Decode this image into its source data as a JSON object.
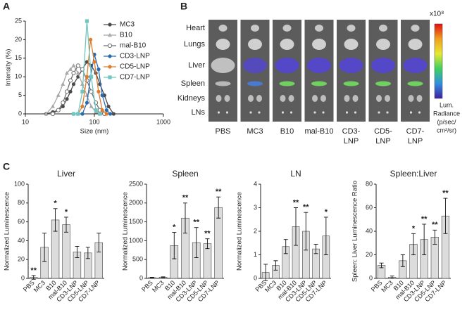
{
  "panel_labels": [
    "A",
    "B",
    "C"
  ],
  "imaging": {
    "rows": [
      "Heart",
      "Lungs",
      "Liver",
      "Spleen",
      "Kidneys",
      "LNs"
    ],
    "columns": [
      [
        "PBS"
      ],
      [
        "MC3"
      ],
      [
        "B10"
      ],
      [
        "mal-B10"
      ],
      [
        "CD3-",
        "LNP"
      ],
      [
        "CD5-",
        "LNP"
      ],
      [
        "CD7-",
        "LNP"
      ]
    ],
    "colorbar_exponent": "x10⁸",
    "colorbar_label": [
      "Lum.",
      "Radiance",
      "(p/sec/",
      "cm²/sr)"
    ]
  },
  "chart_data": [
    {
      "type": "line",
      "xlabel": "Size (nm)",
      "ylabel": "Intensity (%)",
      "log_x": true,
      "xlim": [
        10,
        1000
      ],
      "xticks": [
        10,
        100,
        1000
      ],
      "ylim": [
        0,
        25
      ],
      "yticks": [
        0,
        5,
        10,
        15,
        20,
        25
      ],
      "legend": "upper right",
      "series": [
        {
          "name": "MC3",
          "color": "#4a4a4a",
          "marker": "circle",
          "x": [
            20,
            25,
            30,
            35,
            40,
            45,
            50,
            58,
            67,
            78,
            90,
            105,
            120,
            140,
            160,
            190
          ],
          "values": [
            0,
            0.5,
            1,
            2,
            4,
            6,
            8,
            10,
            12,
            14,
            13,
            11,
            8,
            5,
            2,
            0
          ]
        },
        {
          "name": "B10",
          "color": "#a8a8a8",
          "marker": "triangle",
          "x": [
            20,
            25,
            30,
            35,
            40,
            45,
            50,
            58,
            67,
            78,
            90,
            105,
            120
          ],
          "values": [
            0,
            2,
            5,
            8,
            11,
            12,
            13,
            11,
            8,
            5,
            2,
            0.5,
            0
          ]
        },
        {
          "name": "mal-B10",
          "color": "#6e6e6e",
          "marker": "open-circle",
          "x": [
            25,
            30,
            35,
            40,
            45,
            50,
            58,
            67,
            78,
            90,
            105,
            120,
            140
          ],
          "values": [
            0,
            1,
            3,
            6,
            9,
            11,
            13,
            12,
            9,
            6,
            3,
            1,
            0
          ]
        },
        {
          "name": "CD3-LNP",
          "color": "#2a6bb0",
          "marker": "circle",
          "x": [
            50,
            58,
            67,
            78,
            88,
            100,
            115,
            130,
            150,
            170
          ],
          "values": [
            0,
            0,
            0,
            3,
            10,
            16,
            12,
            5,
            1,
            0
          ]
        },
        {
          "name": "CD5-LNP",
          "color": "#e07b2a",
          "marker": "circle",
          "x": [
            50,
            58,
            67,
            78,
            88,
            100,
            115,
            130,
            150
          ],
          "values": [
            0,
            0,
            2,
            10,
            20,
            14,
            6,
            1,
            0
          ]
        },
        {
          "name": "CD7-LNP",
          "color": "#6ec6c0",
          "marker": "square",
          "x": [
            50,
            58,
            67,
            78,
            90,
            105,
            120
          ],
          "values": [
            0,
            0,
            6,
            25,
            10,
            1,
            0
          ]
        }
      ]
    },
    {
      "type": "bar",
      "title": "Liver",
      "ylabel": "Normalized Luminescence",
      "categories": [
        "PBS",
        "MC3",
        "B10",
        "mal-B10",
        "CD3-LNP",
        "CD5-LNP",
        "CD7-LNP"
      ],
      "values": [
        1,
        33,
        62,
        57,
        28,
        27,
        38
      ],
      "errors": [
        2,
        15,
        12,
        8,
        6,
        6,
        10
      ],
      "significance": [
        "**",
        null,
        "*",
        "*",
        null,
        null,
        null
      ],
      "color": "#dcdcdc",
      "ylim": [
        0,
        100
      ],
      "yticks": [
        0,
        20,
        40,
        60,
        80,
        100
      ]
    },
    {
      "type": "bar",
      "title": "Spleen",
      "ylabel": "Normalized Luminescence",
      "categories": [
        "PBS",
        "MC3",
        "B10",
        "mal-B10",
        "CD3-LNP",
        "CD5-LNP",
        "CD7-LNP"
      ],
      "values": [
        20,
        30,
        870,
        1600,
        950,
        920,
        1880
      ],
      "errors": [
        10,
        10,
        350,
        400,
        400,
        130,
        280
      ],
      "significance": [
        null,
        null,
        "*",
        "**",
        "**",
        "**",
        "**"
      ],
      "color": "#dcdcdc",
      "ylim": [
        0,
        2500
      ],
      "yticks": [
        0,
        500,
        1000,
        1500,
        2000,
        2500
      ]
    },
    {
      "type": "bar",
      "title": "LN",
      "ylabel": "Normalized Luminescence",
      "categories": [
        "PBS",
        "MC3",
        "B10",
        "mal-B10",
        "CD3-LNP",
        "CD5-LNP",
        "CD7-LNP"
      ],
      "values": [
        0.25,
        0.55,
        1.35,
        2.2,
        2.0,
        1.25,
        1.8
      ],
      "errors": [
        0.35,
        0.2,
        0.3,
        0.8,
        0.8,
        0.2,
        0.8
      ],
      "significance": [
        null,
        null,
        null,
        "**",
        "**",
        null,
        "*"
      ],
      "color": "#dcdcdc",
      "ylim": [
        0,
        4
      ],
      "yticks": [
        0,
        1,
        2,
        3,
        4
      ]
    },
    {
      "type": "bar",
      "title": "Spleen:Liver",
      "ylabel": "Spleen: Liver Luminescence Ratio",
      "categories": [
        "PBS",
        "MC3",
        "B10",
        "mal-B10",
        "CD3-LNP",
        "CD5-LNP",
        "CD7-LNP"
      ],
      "values": [
        11,
        1,
        15,
        29,
        33,
        35,
        53
      ],
      "errors": [
        2,
        1,
        5,
        9,
        13,
        6,
        15
      ],
      "significance": [
        null,
        null,
        null,
        "*",
        "**",
        "**",
        "**"
      ],
      "color": "#dcdcdc",
      "ylim": [
        0,
        80
      ],
      "yticks": [
        0,
        20,
        40,
        60,
        80
      ]
    }
  ]
}
